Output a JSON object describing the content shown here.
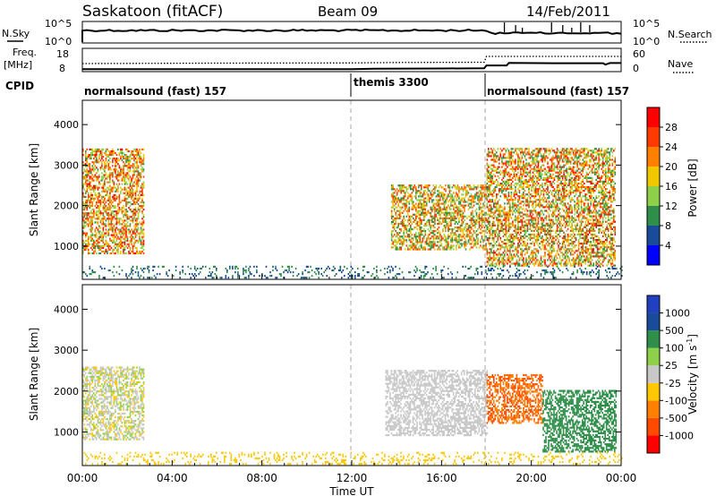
{
  "header": {
    "station": "Saskatoon (fitACF)",
    "beam": "Beam 09",
    "date": "14/Feb/2011"
  },
  "noise_panel": {
    "left_label": "N.Sky",
    "left_ticks": [
      "10^5",
      "10^0"
    ],
    "right_ticks": [
      "10^5",
      "10^0"
    ],
    "right_label": "N.Search"
  },
  "freq_panel": {
    "left_label_1": "Freq.",
    "left_label_2": "[MHz]",
    "left_ticks": [
      "18",
      "8"
    ],
    "right_ticks": [
      "60",
      "0"
    ],
    "right_label": "Nave"
  },
  "cpid": {
    "label": "CPID",
    "segments": [
      {
        "name": "normalsound (fast) 157",
        "start_h": 0,
        "end_h": 12
      },
      {
        "name": "themis 3300",
        "start_h": 12,
        "end_h": 18
      },
      {
        "name": "normalsound (fast) 157",
        "start_h": 18,
        "end_h": 24
      }
    ]
  },
  "x_axis": {
    "label": "Time UT",
    "ticks": [
      "00:00",
      "04:00",
      "08:00",
      "12:00",
      "16:00",
      "20:00",
      "00:00"
    ]
  },
  "power_scale": {
    "label": "Power [dB]",
    "ticks": [
      "28",
      "24",
      "20",
      "16",
      "12",
      "8",
      "4"
    ],
    "colors": [
      "#0000ff",
      "#1a4a9a",
      "#2f8f4a",
      "#8ed04a",
      "#f0c800",
      "#ff8000",
      "#ff3a00",
      "#ff0000"
    ]
  },
  "velocity_scale": {
    "label_main": "Velocity",
    "label_unit": "[m s",
    "label_exp": "-1",
    "label_close": "]",
    "ticks": [
      "1000",
      "500",
      "100",
      "25",
      "-25",
      "-100",
      "-500",
      "-1000"
    ],
    "colors": [
      "#ff0000",
      "#ff4a00",
      "#ff8000",
      "#ffc800",
      "#c8c8c8",
      "#8ed04a",
      "#2f8f4a",
      "#1a4a9a",
      "#2040c0"
    ]
  },
  "chart_data": [
    {
      "type": "heatmap",
      "title": "Power",
      "xlabel": "Time UT",
      "ylabel": "Slant Range [km]",
      "xlim": [
        "00:00",
        "24:00"
      ],
      "ylim": [
        180,
        4600
      ],
      "y_ticks": [
        1000,
        2000,
        3000,
        4000
      ],
      "colorbar": {
        "label": "Power [dB]",
        "range": [
          0,
          30
        ]
      },
      "features": [
        {
          "time_start": "00:00",
          "time_end": "02:45",
          "range_km": [
            800,
            3400
          ],
          "power_db": [
            10,
            30
          ]
        },
        {
          "time_start": "13:45",
          "time_end": "18:00",
          "range_km": [
            900,
            2500
          ],
          "power_db": [
            8,
            28
          ]
        },
        {
          "time_start": "18:00",
          "time_end": "23:45",
          "range_km": [
            500,
            3400
          ],
          "power_db": [
            8,
            30
          ]
        },
        {
          "time_start": "00:00",
          "time_end": "24:00",
          "range_km": [
            200,
            500
          ],
          "power_db": [
            4,
            12
          ]
        }
      ]
    },
    {
      "type": "heatmap",
      "title": "Velocity",
      "xlabel": "Time UT",
      "ylabel": "Slant Range [km]",
      "xlim": [
        "00:00",
        "24:00"
      ],
      "ylim": [
        180,
        4600
      ],
      "y_ticks": [
        1000,
        2000,
        3000,
        4000
      ],
      "colorbar": {
        "label": "Velocity [m s-1]",
        "range": [
          -1000,
          1000
        ]
      },
      "features": [
        {
          "time_start": "00:00",
          "time_end": "02:45",
          "range_km": [
            800,
            2600
          ],
          "velocity_ms": [
            -50,
            50
          ]
        },
        {
          "time_start": "13:30",
          "time_end": "18:00",
          "range_km": [
            900,
            2500
          ],
          "velocity_ms": [
            -25,
            25
          ]
        },
        {
          "time_start": "18:00",
          "time_end": "20:30",
          "range_km": [
            1200,
            2400
          ],
          "velocity_ms": [
            -200,
            -800
          ]
        },
        {
          "time_start": "20:30",
          "time_end": "23:45",
          "range_km": [
            500,
            2000
          ],
          "velocity_ms": [
            100,
            500
          ]
        },
        {
          "time_start": "00:00",
          "time_end": "24:00",
          "range_km": [
            200,
            500
          ],
          "velocity_ms": [
            -100,
            -25
          ]
        }
      ]
    }
  ]
}
